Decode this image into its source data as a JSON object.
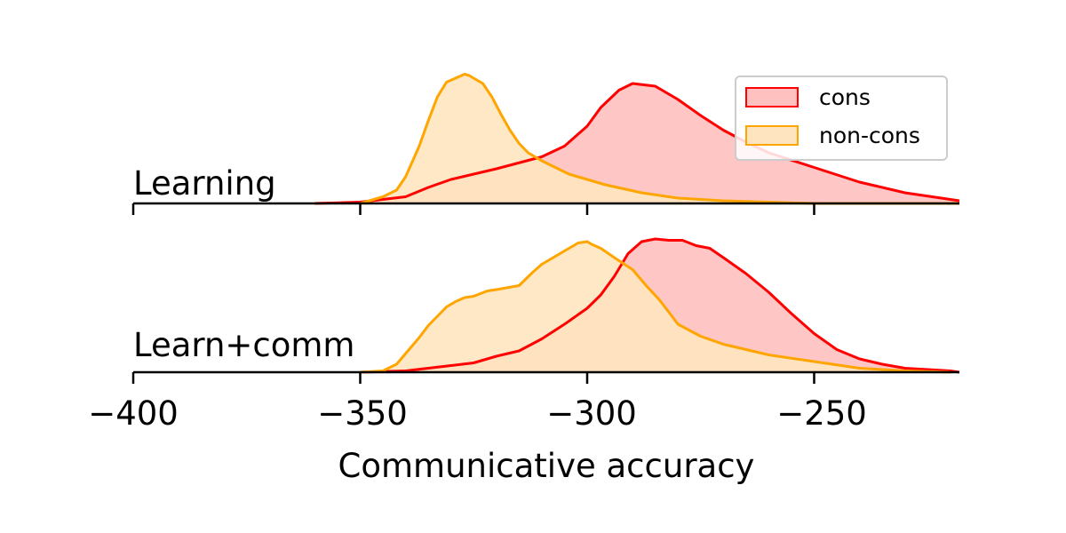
{
  "chart_data": {
    "type": "area",
    "subtype": "ridgeline-kde",
    "xlabel": "Communicative accuracy",
    "xlim": [
      -400,
      -218
    ],
    "xticks": [
      -400,
      -350,
      -300,
      -250
    ],
    "xtick_labels": [
      "−400",
      "−350",
      "−300",
      "−250"
    ],
    "legend": {
      "placement": "top-right",
      "entries": [
        "cons",
        "non-cons"
      ]
    },
    "colors": {
      "cons": {
        "line": "#ff0000",
        "fill": "#ffc0c0"
      },
      "non-cons": {
        "line": "#ffa500",
        "fill": "#ffe5bf"
      }
    },
    "panels": [
      {
        "label": "Learning",
        "series": [
          {
            "name": "cons",
            "x": [
              -360,
              -350,
              -340,
              -335,
              -330,
              -325,
              -320,
              -310,
              -305,
              -300,
              -297,
              -293,
              -290,
              -285,
              -280,
              -275,
              -270,
              -265,
              -260,
              -250,
              -240,
              -230,
              -220,
              -218
            ],
            "y": [
              0.0,
              0.01,
              0.05,
              0.12,
              0.18,
              0.22,
              0.26,
              0.35,
              0.43,
              0.58,
              0.72,
              0.85,
              0.9,
              0.88,
              0.78,
              0.66,
              0.55,
              0.46,
              0.38,
              0.27,
              0.16,
              0.08,
              0.03,
              0.02
            ]
          },
          {
            "name": "non-cons",
            "x": [
              -350,
              -345,
              -342,
              -340,
              -337,
              -335,
              -333,
              -331,
              -329,
              -327,
              -326,
              -325,
              -323,
              -321,
              -319,
              -317,
              -315,
              -313,
              -310,
              -307,
              -304,
              -300,
              -296,
              -292,
              -288,
              -284,
              -280,
              -270,
              -260,
              -250,
              -240,
              -230,
              -220,
              -218
            ],
            "y": [
              0.0,
              0.05,
              0.1,
              0.2,
              0.43,
              0.62,
              0.8,
              0.91,
              0.94,
              0.97,
              0.96,
              0.94,
              0.9,
              0.8,
              0.67,
              0.55,
              0.45,
              0.38,
              0.32,
              0.27,
              0.22,
              0.18,
              0.14,
              0.11,
              0.08,
              0.06,
              0.04,
              0.02,
              0.01,
              0.0,
              0.0,
              0.0,
              0.0,
              0.0
            ]
          }
        ]
      },
      {
        "label": "Learn+comm",
        "series": [
          {
            "name": "cons",
            "x": [
              -350,
              -340,
              -330,
              -325,
              -320,
              -315,
              -310,
              -305,
              -300,
              -297,
              -294,
              -291,
              -288,
              -285,
              -282,
              -279,
              -276,
              -273,
              -270,
              -265,
              -260,
              -255,
              -250,
              -245,
              -240,
              -235,
              -230,
              -225,
              -220,
              -218
            ],
            "y": [
              0.0,
              0.01,
              0.05,
              0.07,
              0.12,
              0.16,
              0.25,
              0.36,
              0.48,
              0.58,
              0.72,
              0.89,
              0.98,
              1.0,
              0.99,
              0.99,
              0.95,
              0.93,
              0.86,
              0.74,
              0.6,
              0.44,
              0.29,
              0.17,
              0.1,
              0.06,
              0.03,
              0.02,
              0.01,
              0.0
            ]
          },
          {
            "name": "non-cons",
            "x": [
              -350,
              -345,
              -342,
              -340,
              -337,
              -335,
              -333,
              -331,
              -329,
              -327,
              -325,
              -322,
              -320,
              -315,
              -312,
              -310,
              -305,
              -303,
              -302,
              -300,
              -299,
              -297,
              -294,
              -290,
              -287,
              -284,
              -282,
              -280,
              -275,
              -270,
              -260,
              -250,
              -240,
              -230,
              -220
            ],
            "y": [
              0.0,
              0.01,
              0.06,
              0.14,
              0.26,
              0.35,
              0.42,
              0.49,
              0.53,
              0.56,
              0.57,
              0.61,
              0.62,
              0.65,
              0.75,
              0.81,
              0.91,
              0.95,
              0.97,
              0.98,
              0.96,
              0.93,
              0.86,
              0.77,
              0.65,
              0.54,
              0.45,
              0.36,
              0.27,
              0.21,
              0.13,
              0.08,
              0.03,
              0.01,
              0.0
            ]
          }
        ]
      }
    ]
  }
}
